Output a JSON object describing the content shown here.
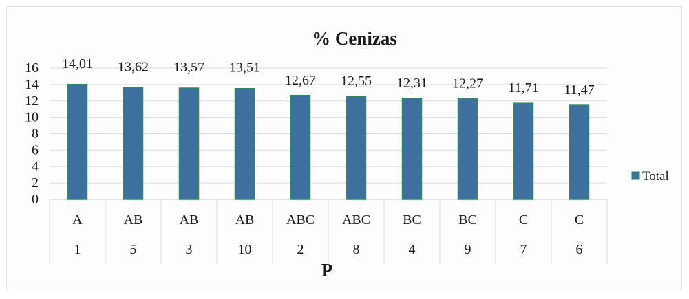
{
  "chart_data": {
    "type": "bar",
    "title": "% Cenizas",
    "xlabel": "P",
    "ylabel": "",
    "ylim": [
      0,
      16
    ],
    "yticks": [
      0,
      2,
      4,
      6,
      8,
      10,
      12,
      14,
      16
    ],
    "categories": [
      "1",
      "5",
      "3",
      "10",
      "2",
      "8",
      "4",
      "9",
      "7",
      "6"
    ],
    "groups": [
      "A",
      "AB",
      "AB",
      "AB",
      "ABC",
      "ABC",
      "BC",
      "BC",
      "C",
      "C"
    ],
    "series": [
      {
        "name": "Total",
        "values": [
          14.01,
          13.62,
          13.57,
          13.51,
          12.67,
          12.55,
          12.31,
          12.27,
          11.71,
          11.47
        ],
        "labels": [
          "14,01",
          "13,62",
          "13,57",
          "13,51",
          "12,67",
          "12,55",
          "12,31",
          "12,27",
          "11,71",
          "11,47"
        ],
        "color": "#3d6f9f",
        "edge_color": "#2e8b57"
      }
    ],
    "grid": true,
    "legend": "right"
  }
}
